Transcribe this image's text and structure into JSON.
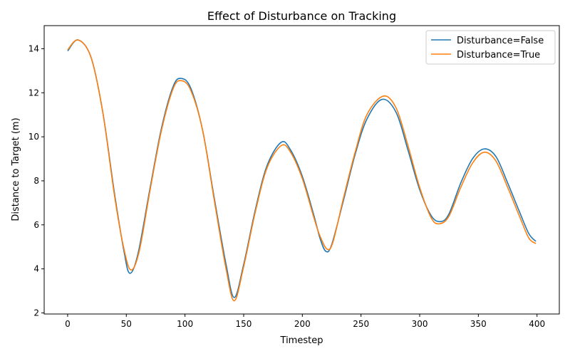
{
  "chart_data": {
    "type": "line",
    "title": "Effect of Disturbance on Tracking",
    "xlabel": "Timestep",
    "ylabel": "Distance to Target (m)",
    "xlim": [
      -20,
      419
    ],
    "ylim": [
      1.95,
      15.05
    ],
    "xticks": [
      0,
      50,
      100,
      150,
      200,
      250,
      300,
      350,
      400
    ],
    "yticks": [
      2,
      4,
      6,
      8,
      10,
      12,
      14
    ],
    "grid": false,
    "legend_position": "top-right",
    "series": [
      {
        "name": "Disturbance=False",
        "color": "#1f77b4",
        "points": [
          [
            0,
            13.9
          ],
          [
            9,
            14.4
          ],
          [
            20,
            13.6
          ],
          [
            30,
            11.1
          ],
          [
            40,
            7.4
          ],
          [
            48,
            4.8
          ],
          [
            53,
            3.8
          ],
          [
            60,
            4.7
          ],
          [
            70,
            7.6
          ],
          [
            80,
            10.4
          ],
          [
            90,
            12.3
          ],
          [
            97,
            12.65
          ],
          [
            105,
            12.2
          ],
          [
            115,
            10.3
          ],
          [
            125,
            7.2
          ],
          [
            135,
            4.2
          ],
          [
            142,
            2.7
          ],
          [
            150,
            4.2
          ],
          [
            160,
            6.7
          ],
          [
            170,
            8.7
          ],
          [
            182,
            9.75
          ],
          [
            190,
            9.4
          ],
          [
            200,
            8.2
          ],
          [
            210,
            6.4
          ],
          [
            215,
            5.4
          ],
          [
            220,
            4.8
          ],
          [
            225,
            5.1
          ],
          [
            235,
            7.1
          ],
          [
            245,
            9.2
          ],
          [
            255,
            10.8
          ],
          [
            268,
            11.7
          ],
          [
            280,
            11.1
          ],
          [
            290,
            9.4
          ],
          [
            300,
            7.6
          ],
          [
            310,
            6.4
          ],
          [
            318,
            6.15
          ],
          [
            325,
            6.5
          ],
          [
            335,
            7.9
          ],
          [
            345,
            9.0
          ],
          [
            355,
            9.45
          ],
          [
            365,
            9.1
          ],
          [
            375,
            7.9
          ],
          [
            385,
            6.6
          ],
          [
            393,
            5.6
          ],
          [
            399,
            5.25
          ]
        ]
      },
      {
        "name": "Disturbance=True",
        "color": "#ff7f0e",
        "points": [
          [
            0,
            13.95
          ],
          [
            9,
            14.4
          ],
          [
            20,
            13.6
          ],
          [
            30,
            11.1
          ],
          [
            40,
            7.3
          ],
          [
            48,
            4.9
          ],
          [
            54,
            3.95
          ],
          [
            61,
            4.8
          ],
          [
            70,
            7.5
          ],
          [
            80,
            10.3
          ],
          [
            90,
            12.2
          ],
          [
            97,
            12.55
          ],
          [
            105,
            12.1
          ],
          [
            115,
            10.3
          ],
          [
            125,
            7.1
          ],
          [
            135,
            4.0
          ],
          [
            142,
            2.55
          ],
          [
            150,
            4.1
          ],
          [
            160,
            6.6
          ],
          [
            170,
            8.6
          ],
          [
            182,
            9.6
          ],
          [
            190,
            9.3
          ],
          [
            200,
            8.1
          ],
          [
            210,
            6.3
          ],
          [
            215,
            5.5
          ],
          [
            221,
            4.9
          ],
          [
            226,
            5.2
          ],
          [
            235,
            7.2
          ],
          [
            245,
            9.3
          ],
          [
            255,
            11.0
          ],
          [
            269,
            11.85
          ],
          [
            280,
            11.3
          ],
          [
            290,
            9.6
          ],
          [
            300,
            7.7
          ],
          [
            310,
            6.3
          ],
          [
            317,
            6.05
          ],
          [
            325,
            6.4
          ],
          [
            335,
            7.7
          ],
          [
            345,
            8.8
          ],
          [
            355,
            9.3
          ],
          [
            365,
            8.9
          ],
          [
            375,
            7.7
          ],
          [
            385,
            6.4
          ],
          [
            393,
            5.4
          ],
          [
            399,
            5.15
          ]
        ]
      }
    ]
  }
}
